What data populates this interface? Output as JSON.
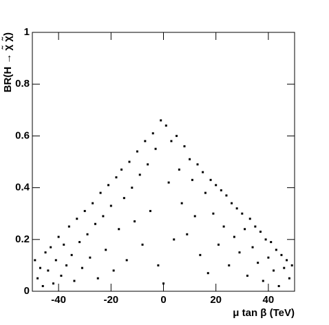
{
  "chart_data": {
    "type": "scatter",
    "x_label": "μ tan β (TeV)",
    "y_label": "BR(H → χ̃ χ̃)",
    "color": "#000000",
    "xlim": [
      -50,
      50
    ],
    "xticks": [
      -40,
      -20,
      0,
      20,
      40
    ],
    "ylim": [
      0,
      1
    ],
    "yticks": [
      0,
      0.2,
      0.4,
      0.6,
      0.8,
      1
    ],
    "x": [
      -49,
      -48,
      -47,
      -46,
      -45,
      -44,
      -43,
      -42,
      -41,
      -40,
      -39,
      -38,
      -37,
      -36,
      -35,
      -34,
      -33,
      -32,
      -31,
      -30,
      -29,
      -28,
      -27,
      -26,
      -25,
      -24,
      -23,
      -22,
      -21,
      -20,
      -19,
      -18,
      -17,
      -16,
      -15,
      -14,
      -13,
      -12,
      -11,
      -10,
      -9,
      -8,
      -7,
      -6,
      -5,
      -4,
      -3,
      -2,
      -1,
      0,
      1,
      2,
      3,
      4,
      5,
      6,
      7,
      8,
      9,
      10,
      11,
      12,
      13,
      14,
      15,
      16,
      17,
      18,
      19,
      20,
      21,
      22,
      23,
      24,
      25,
      26,
      27,
      28,
      29,
      30,
      31,
      32,
      33,
      34,
      35,
      36,
      37,
      38,
      39,
      40,
      41,
      42,
      43,
      44,
      45,
      46,
      47,
      48,
      49
    ],
    "y": [
      0.12,
      0.05,
      0.09,
      0.02,
      0.15,
      0.08,
      0.17,
      0.03,
      0.12,
      0.21,
      0.06,
      0.18,
      0.1,
      0.25,
      0.14,
      0.04,
      0.28,
      0.19,
      0.09,
      0.31,
      0.22,
      0.13,
      0.34,
      0.26,
      0.05,
      0.38,
      0.29,
      0.16,
      0.41,
      0.33,
      0.08,
      0.44,
      0.24,
      0.47,
      0.36,
      0.12,
      0.5,
      0.4,
      0.27,
      0.54,
      0.45,
      0.18,
      0.58,
      0.49,
      0.31,
      0.61,
      0.55,
      0.1,
      0.66,
      0.03,
      0.64,
      0.42,
      0.58,
      0.2,
      0.6,
      0.47,
      0.34,
      0.56,
      0.22,
      0.51,
      0.43,
      0.29,
      0.49,
      0.14,
      0.46,
      0.38,
      0.07,
      0.43,
      0.3,
      0.41,
      0.18,
      0.39,
      0.25,
      0.37,
      0.1,
      0.34,
      0.21,
      0.32,
      0.15,
      0.3,
      0.24,
      0.06,
      0.28,
      0.17,
      0.25,
      0.11,
      0.23,
      0.04,
      0.2,
      0.13,
      0.19,
      0.08,
      0.16,
      0.02,
      0.14,
      0.09,
      0.12,
      0.05,
      0.1
    ]
  }
}
